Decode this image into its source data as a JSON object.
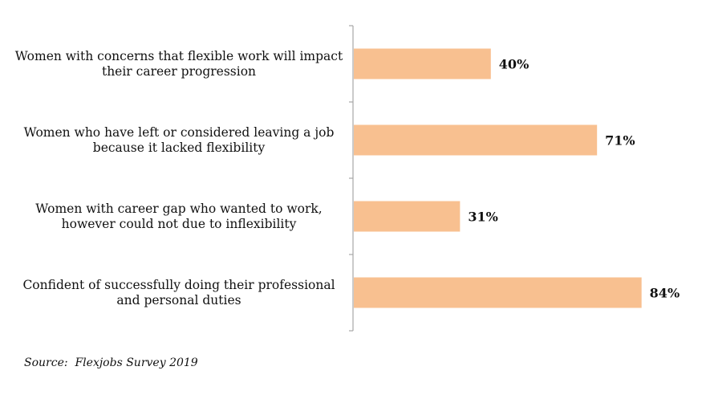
{
  "source": "Source:  Flexjobs Survey 2019",
  "colors": {
    "bar": "#f8c090",
    "axis": "#a6a6a6",
    "text": "#111111"
  },
  "chart_data": {
    "type": "bar",
    "orientation": "horizontal",
    "categories": [
      [
        "Women with concerns that flexible work will impact",
        "their career progression"
      ],
      [
        "Women who have left or considered leaving a job",
        "because it lacked flexibility"
      ],
      [
        "Women with career gap who wanted to work,",
        "however could not due to inflexibility"
      ],
      [
        "Confident of successfully doing their professional",
        "and personal duties"
      ]
    ],
    "values": [
      40,
      71,
      31,
      84
    ],
    "value_labels": [
      "40%",
      "71%",
      "31%",
      "84%"
    ],
    "unit": "%",
    "xlim": [
      0,
      100
    ],
    "grid": false,
    "legend": "none"
  }
}
